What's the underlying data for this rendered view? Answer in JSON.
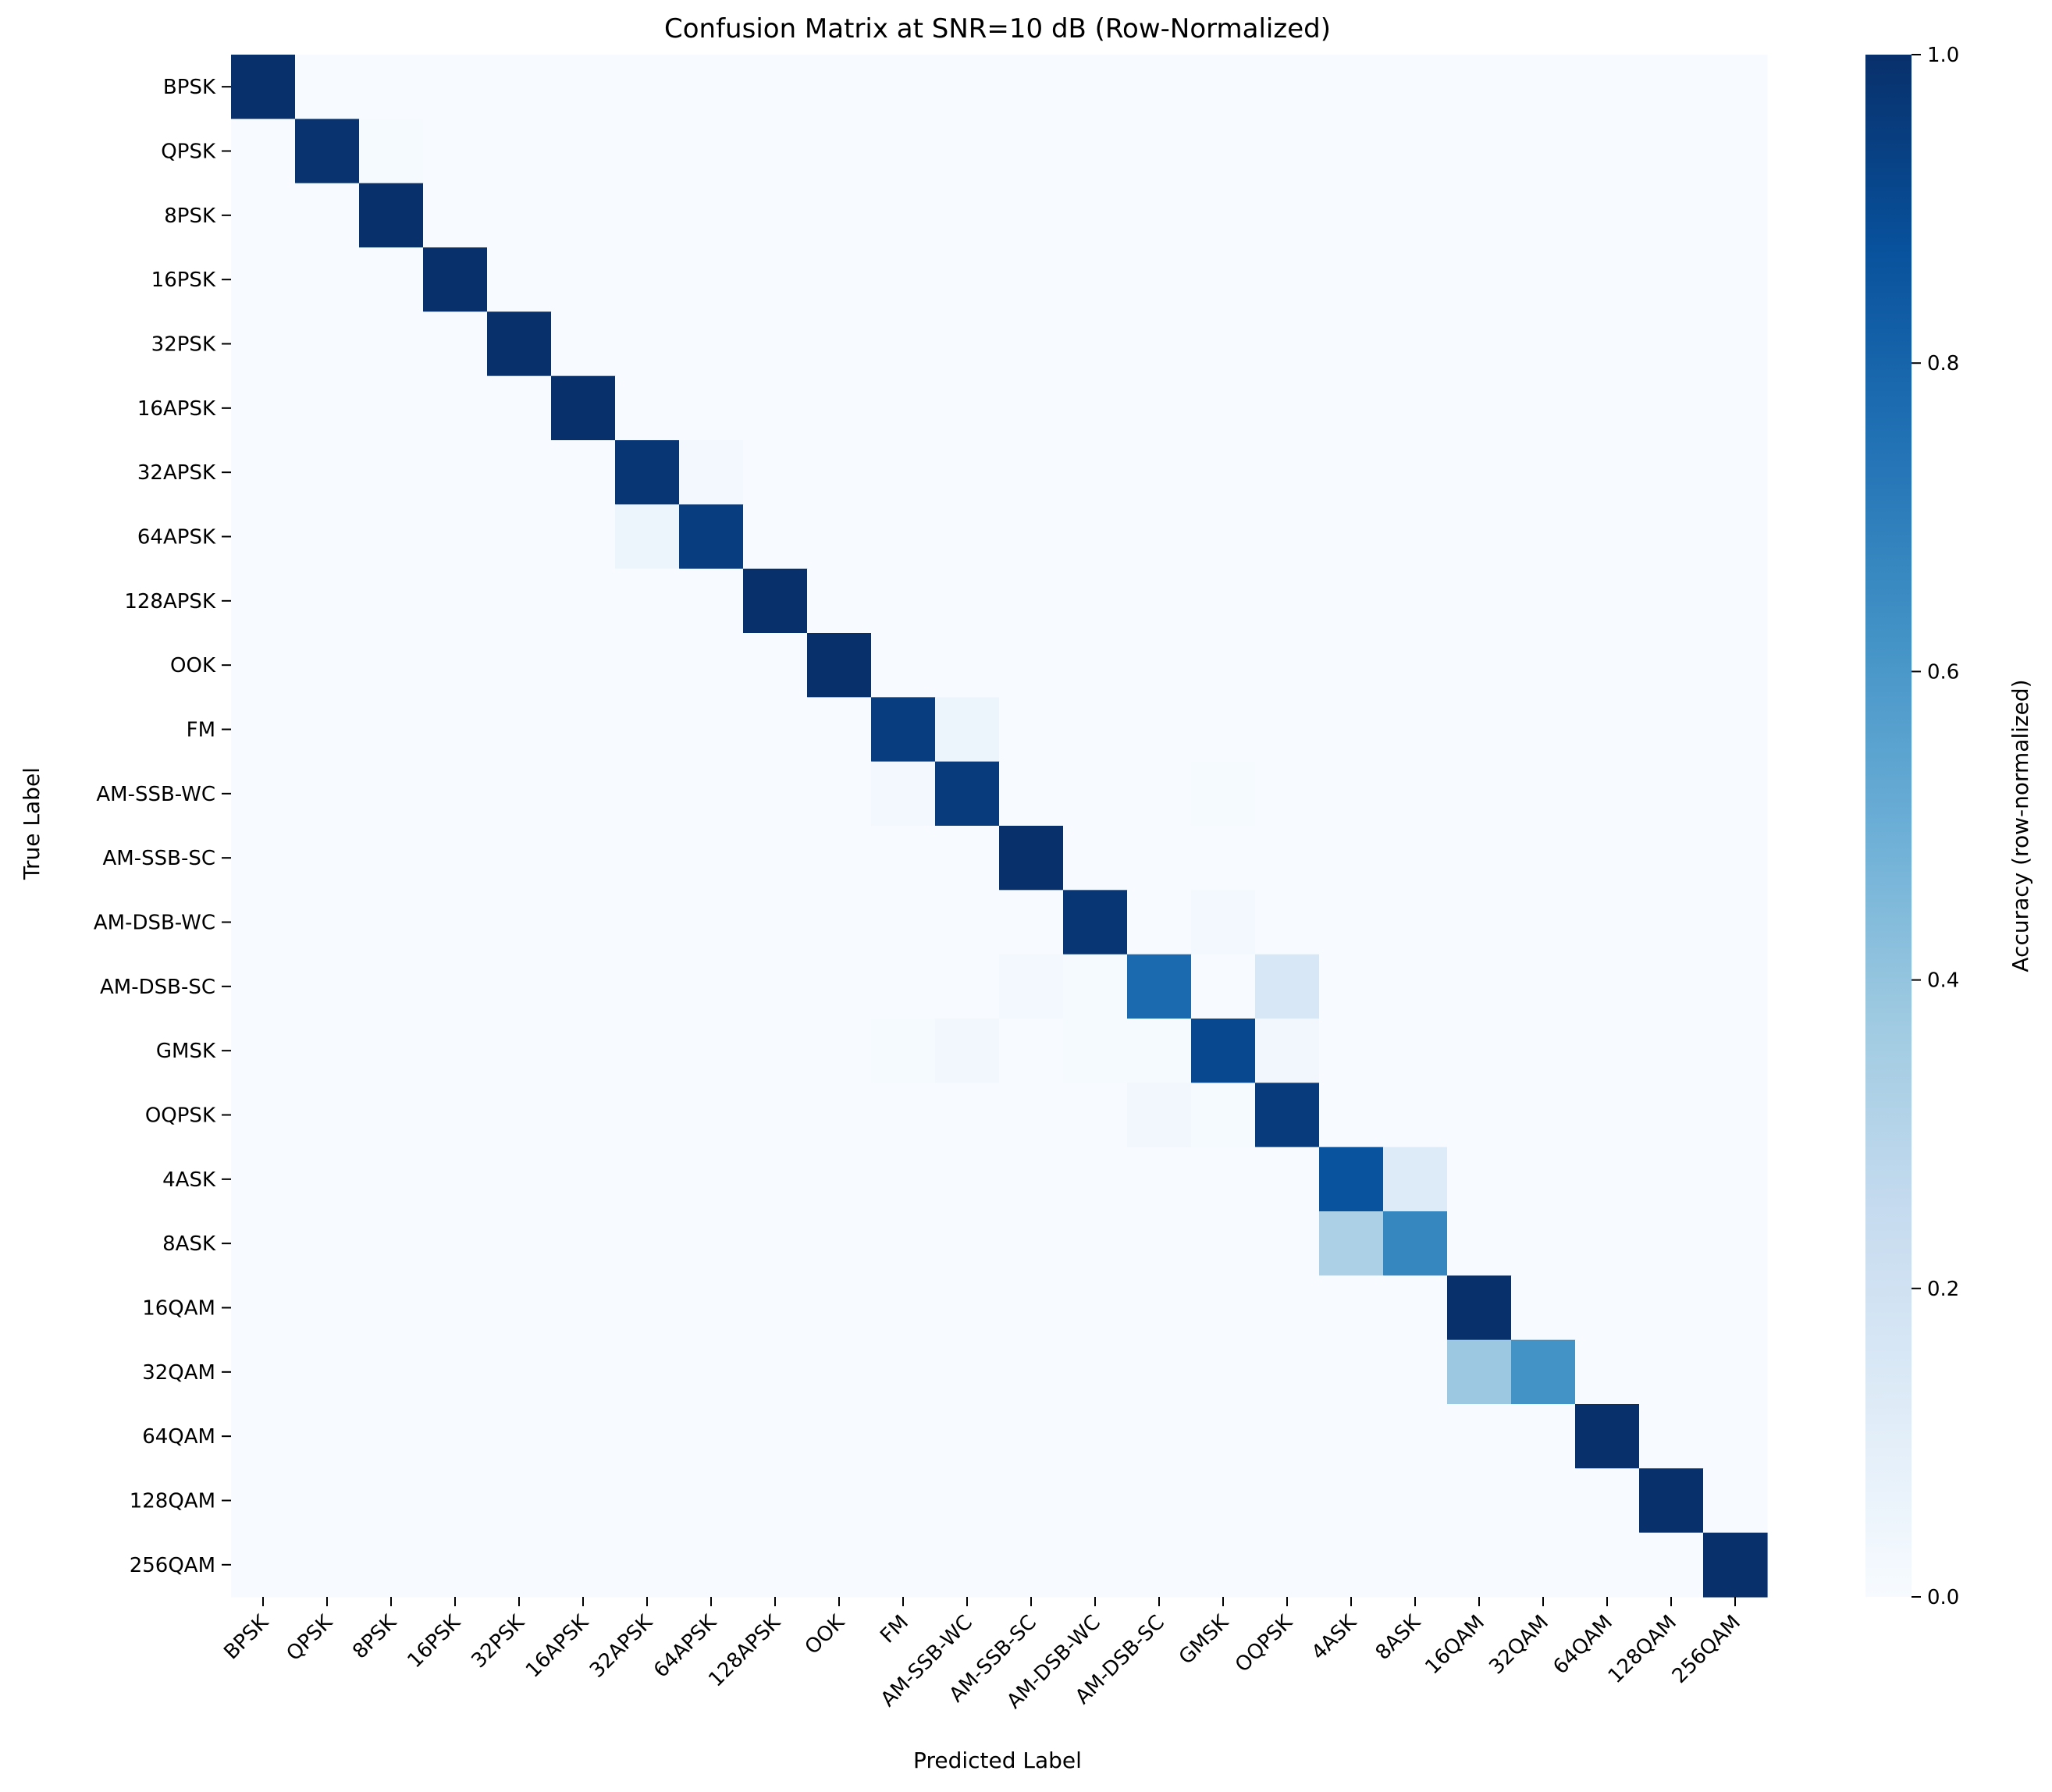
{
  "chart_data": {
    "type": "heatmap",
    "title": "Confusion Matrix at SNR=10 dB (Row-Normalized)",
    "xlabel": "Predicted Label",
    "ylabel": "True Label",
    "colorbar_label": "Accuracy (row-normalized)",
    "colorbar_ticks": [
      "0.0",
      "0.2",
      "0.4",
      "0.6",
      "0.8",
      "1.0"
    ],
    "zlim": [
      0,
      1
    ],
    "colormap": "Blues",
    "rows": [
      "BPSK",
      "QPSK",
      "8PSK",
      "16PSK",
      "32PSK",
      "16APSK",
      "32APSK",
      "64APSK",
      "128APSK",
      "OOK",
      "FM",
      "AM-SSB-WC",
      "AM-SSB-SC",
      "AM-DSB-WC",
      "AM-DSB-SC",
      "GMSK",
      "OQPSK",
      "4ASK",
      "8ASK",
      "16QAM",
      "32QAM",
      "64QAM",
      "128QAM",
      "256QAM"
    ],
    "columns": [
      "BPSK",
      "QPSK",
      "8PSK",
      "16PSK",
      "32PSK",
      "16APSK",
      "32APSK",
      "64APSK",
      "128APSK",
      "OOK",
      "FM",
      "AM-SSB-WC",
      "AM-SSB-SC",
      "AM-DSB-WC",
      "AM-DSB-SC",
      "GMSK",
      "OQPSK",
      "4ASK",
      "8ASK",
      "16QAM",
      "32QAM",
      "64QAM",
      "128QAM",
      "256QAM"
    ],
    "values": [
      [
        1.0,
        0,
        0,
        0,
        0,
        0,
        0,
        0,
        0,
        0,
        0,
        0,
        0,
        0,
        0,
        0,
        0,
        0,
        0,
        0,
        0,
        0,
        0,
        0
      ],
      [
        0,
        0.99,
        0.01,
        0,
        0,
        0,
        0,
        0,
        0,
        0,
        0,
        0,
        0,
        0,
        0,
        0,
        0,
        0,
        0,
        0,
        0,
        0,
        0,
        0
      ],
      [
        0,
        0,
        1.0,
        0,
        0,
        0,
        0,
        0,
        0,
        0,
        0,
        0,
        0,
        0,
        0,
        0,
        0,
        0,
        0,
        0,
        0,
        0,
        0,
        0
      ],
      [
        0,
        0,
        0,
        1.0,
        0,
        0,
        0,
        0,
        0,
        0,
        0,
        0,
        0,
        0,
        0,
        0,
        0,
        0,
        0,
        0,
        0,
        0,
        0,
        0
      ],
      [
        0,
        0,
        0,
        0,
        1.0,
        0,
        0,
        0,
        0,
        0,
        0,
        0,
        0,
        0,
        0,
        0,
        0,
        0,
        0,
        0,
        0,
        0,
        0,
        0
      ],
      [
        0,
        0,
        0,
        0,
        0,
        1.0,
        0,
        0,
        0,
        0,
        0,
        0,
        0,
        0,
        0,
        0,
        0,
        0,
        0,
        0,
        0,
        0,
        0,
        0
      ],
      [
        0,
        0,
        0,
        0,
        0,
        0,
        0.98,
        0.02,
        0,
        0,
        0,
        0,
        0,
        0,
        0,
        0,
        0,
        0,
        0,
        0,
        0,
        0,
        0,
        0
      ],
      [
        0,
        0,
        0,
        0,
        0,
        0,
        0.05,
        0.95,
        0,
        0,
        0,
        0,
        0,
        0,
        0,
        0,
        0,
        0,
        0,
        0,
        0,
        0,
        0,
        0
      ],
      [
        0,
        0,
        0,
        0,
        0,
        0,
        0,
        0,
        1.0,
        0,
        0,
        0,
        0,
        0,
        0,
        0,
        0,
        0,
        0,
        0,
        0,
        0,
        0,
        0
      ],
      [
        0,
        0,
        0,
        0,
        0,
        0,
        0,
        0,
        0,
        1.0,
        0,
        0,
        0,
        0,
        0,
        0,
        0,
        0,
        0,
        0,
        0,
        0,
        0,
        0
      ],
      [
        0,
        0,
        0,
        0,
        0,
        0,
        0,
        0,
        0,
        0,
        0.95,
        0.05,
        0,
        0,
        0,
        0,
        0,
        0,
        0,
        0,
        0,
        0,
        0,
        0
      ],
      [
        0,
        0,
        0,
        0,
        0,
        0,
        0,
        0,
        0,
        0,
        0.02,
        0.96,
        0,
        0,
        0,
        0.01,
        0,
        0,
        0,
        0,
        0,
        0,
        0,
        0
      ],
      [
        0,
        0,
        0,
        0,
        0,
        0,
        0,
        0,
        0,
        0,
        0,
        0,
        1.0,
        0,
        0,
        0,
        0,
        0,
        0,
        0,
        0,
        0,
        0,
        0
      ],
      [
        0,
        0,
        0,
        0,
        0,
        0,
        0,
        0,
        0,
        0,
        0,
        0,
        0,
        0.98,
        0,
        0.02,
        0,
        0,
        0,
        0,
        0,
        0,
        0,
        0
      ],
      [
        0,
        0,
        0,
        0,
        0,
        0,
        0,
        0,
        0,
        0,
        0,
        0,
        0.02,
        0.01,
        0.78,
        0,
        0.16,
        0,
        0,
        0,
        0,
        0,
        0,
        0
      ],
      [
        0,
        0,
        0,
        0,
        0,
        0,
        0,
        0,
        0,
        0,
        0.01,
        0.03,
        0,
        0.01,
        0.01,
        0.91,
        0.03,
        0,
        0,
        0,
        0,
        0,
        0,
        0
      ],
      [
        0,
        0,
        0,
        0,
        0,
        0,
        0,
        0,
        0,
        0,
        0,
        0,
        0,
        0,
        0.03,
        0.01,
        0.96,
        0,
        0,
        0,
        0,
        0,
        0,
        0
      ],
      [
        0,
        0,
        0,
        0,
        0,
        0,
        0,
        0,
        0,
        0,
        0,
        0,
        0,
        0,
        0,
        0,
        0,
        0.87,
        0.13,
        0,
        0,
        0,
        0,
        0
      ],
      [
        0,
        0,
        0,
        0,
        0,
        0,
        0,
        0,
        0,
        0,
        0,
        0,
        0,
        0,
        0,
        0,
        0,
        0.33,
        0.67,
        0,
        0,
        0,
        0,
        0
      ],
      [
        0,
        0,
        0,
        0,
        0,
        0,
        0,
        0,
        0,
        0,
        0,
        0,
        0,
        0,
        0,
        0,
        0,
        0,
        0,
        1.0,
        0,
        0,
        0,
        0
      ],
      [
        0,
        0,
        0,
        0,
        0,
        0,
        0,
        0,
        0,
        0,
        0,
        0,
        0,
        0,
        0,
        0,
        0,
        0,
        0,
        0.38,
        0.62,
        0,
        0,
        0
      ],
      [
        0,
        0,
        0,
        0,
        0,
        0,
        0,
        0,
        0,
        0,
        0,
        0,
        0,
        0,
        0,
        0,
        0,
        0,
        0,
        0,
        0,
        1.0,
        0,
        0
      ],
      [
        0,
        0,
        0,
        0,
        0,
        0,
        0,
        0,
        0,
        0,
        0,
        0,
        0,
        0,
        0,
        0,
        0,
        0,
        0,
        0,
        0,
        0,
        1.0,
        0
      ],
      [
        0,
        0,
        0,
        0,
        0,
        0,
        0,
        0,
        0,
        0,
        0,
        0,
        0,
        0,
        0,
        0,
        0,
        0,
        0,
        0,
        0,
        0,
        0,
        1.0
      ]
    ]
  }
}
